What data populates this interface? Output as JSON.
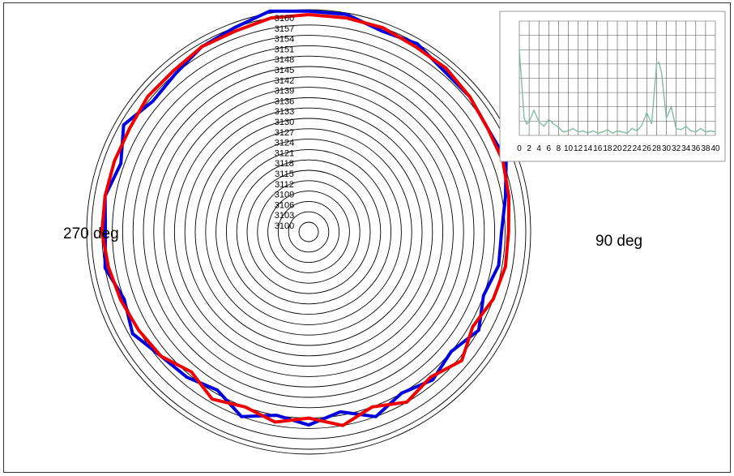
{
  "chart_data": [
    {
      "type": "polar-line",
      "title": "",
      "radial_tick_labels": [
        "3100",
        "3103",
        "3106",
        "3109",
        "3112",
        "3115",
        "3118",
        "3121",
        "3124",
        "3127",
        "3130",
        "3133",
        "3136",
        "3139",
        "3142",
        "3145",
        "3148",
        "3151",
        "3154",
        "3157",
        "3160"
      ],
      "angle_labels": [
        "270 deg",
        "90 deg"
      ],
      "rlim": [
        3100,
        3160
      ],
      "series": [
        {
          "color": "#0000dd",
          "angles_deg": [
            0,
            10,
            20,
            30,
            40,
            50,
            60,
            70,
            80,
            90,
            100,
            110,
            120,
            130,
            140,
            150,
            160,
            170,
            180,
            190,
            200,
            210,
            220,
            230,
            240,
            250,
            260,
            270,
            280,
            290,
            300,
            310,
            320,
            330,
            340,
            350
          ],
          "r": [
            3161,
            3161,
            3159,
            3160,
            3158,
            3158,
            3157,
            3158,
            3155,
            3153,
            3153,
            3151,
            3154,
            3151,
            3153,
            3151,
            3154,
            3150,
            3153,
            3151,
            3154,
            3150,
            3152,
            3153,
            3156,
            3154,
            3157,
            3156,
            3157,
            3155,
            3159,
            3156,
            3157,
            3159,
            3160,
            3162
          ]
        },
        {
          "color": "#ee0000",
          "angles_deg": [
            0,
            10,
            20,
            30,
            40,
            50,
            60,
            70,
            80,
            90,
            100,
            110,
            120,
            130,
            140,
            150,
            160,
            170,
            180,
            190,
            200,
            210,
            220,
            230,
            240,
            250,
            260,
            270,
            280,
            290,
            300,
            310,
            320,
            330,
            340,
            350
          ],
          "r": [
            3160,
            3160,
            3160,
            3159,
            3159,
            3158,
            3157,
            3157,
            3156,
            3155,
            3155,
            3154,
            3152,
            3155,
            3152,
            3154,
            3151,
            3154,
            3151,
            3153,
            3151,
            3153,
            3150,
            3153,
            3154,
            3155,
            3156,
            3157,
            3157,
            3157,
            3157,
            3158,
            3158,
            3159,
            3159,
            3160
          ]
        }
      ]
    },
    {
      "type": "line",
      "title": "",
      "x_tick_labels": [
        "0",
        "2",
        "4",
        "6",
        "8",
        "10",
        "12",
        "14",
        "16",
        "18",
        "20",
        "22",
        "24",
        "26",
        "28",
        "30",
        "32",
        "34",
        "36",
        "38",
        "40"
      ],
      "color": "#7fbf9f",
      "x": [
        0,
        1,
        1.5,
        2,
        3,
        4,
        5,
        6,
        7,
        8,
        9,
        10,
        11,
        12,
        13,
        14,
        15,
        16,
        17,
        18,
        19,
        20,
        21,
        22,
        23,
        24,
        25,
        26,
        27,
        28,
        28.5,
        29,
        30,
        31,
        32,
        33,
        34,
        35,
        36,
        37,
        38,
        39,
        40
      ],
      "y": [
        0.75,
        0.15,
        0.1,
        0.12,
        0.22,
        0.12,
        0.08,
        0.14,
        0.1,
        0.07,
        0.03,
        0.04,
        0.06,
        0.03,
        0.04,
        0.02,
        0.04,
        0.02,
        0.03,
        0.05,
        0.02,
        0.04,
        0.03,
        0.02,
        0.06,
        0.04,
        0.09,
        0.2,
        0.1,
        0.62,
        0.64,
        0.55,
        0.15,
        0.25,
        0.06,
        0.05,
        0.08,
        0.04,
        0.03,
        0.06,
        0.03,
        0.04,
        0.03
      ],
      "ylim": [
        0,
        1.0
      ]
    }
  ]
}
